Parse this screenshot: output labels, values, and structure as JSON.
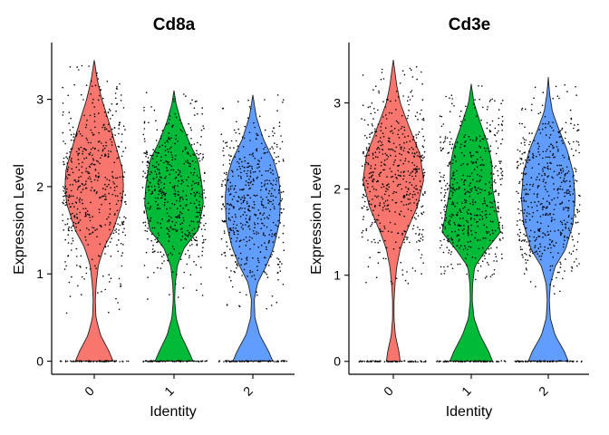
{
  "chart_data": [
    {
      "type": "violin",
      "title": "Cd8a",
      "xlabel": "Identity",
      "ylabel": "Expression Level",
      "ylim": [
        -0.15,
        3.65
      ],
      "yticks": [
        0,
        1,
        2,
        3
      ],
      "categories": [
        "0",
        "1",
        "2"
      ],
      "colors": [
        "#F8766D",
        "#00BA38",
        "#619CFF"
      ],
      "grid": false,
      "legend": "none",
      "series": [
        {
          "category": "0",
          "max": 3.45,
          "zero_width": 0.55,
          "min_nonzero": 0.55,
          "profile": [
            [
              0,
              0.55
            ],
            [
              0.12,
              0.42
            ],
            [
              0.3,
              0.18
            ],
            [
              0.5,
              0.05
            ],
            [
              0.7,
              0.03
            ],
            [
              0.9,
              0.06
            ],
            [
              1.1,
              0.12
            ],
            [
              1.3,
              0.28
            ],
            [
              1.5,
              0.55
            ],
            [
              1.8,
              0.8
            ],
            [
              2.0,
              0.85
            ],
            [
              2.2,
              0.82
            ],
            [
              2.5,
              0.6
            ],
            [
              2.8,
              0.38
            ],
            [
              3.0,
              0.22
            ],
            [
              3.2,
              0.1
            ],
            [
              3.45,
              0
            ]
          ]
        },
        {
          "category": "1",
          "max": 3.1,
          "zero_width": 0.55,
          "min_nonzero": 0.7,
          "profile": [
            [
              0,
              0.55
            ],
            [
              0.12,
              0.42
            ],
            [
              0.3,
              0.2
            ],
            [
              0.5,
              0.06
            ],
            [
              0.7,
              0.02
            ],
            [
              0.9,
              0.04
            ],
            [
              1.1,
              0.1
            ],
            [
              1.3,
              0.3
            ],
            [
              1.5,
              0.7
            ],
            [
              1.8,
              0.85
            ],
            [
              2.0,
              0.82
            ],
            [
              2.3,
              0.7
            ],
            [
              2.5,
              0.45
            ],
            [
              2.75,
              0.2
            ],
            [
              2.95,
              0.06
            ],
            [
              3.1,
              0
            ]
          ]
        },
        {
          "category": "2",
          "max": 3.05,
          "zero_width": 0.58,
          "min_nonzero": 0.6,
          "profile": [
            [
              0,
              0.58
            ],
            [
              0.12,
              0.45
            ],
            [
              0.3,
              0.2
            ],
            [
              0.5,
              0.06
            ],
            [
              0.7,
              0.04
            ],
            [
              0.9,
              0.14
            ],
            [
              1.1,
              0.4
            ],
            [
              1.3,
              0.6
            ],
            [
              1.6,
              0.78
            ],
            [
              1.9,
              0.8
            ],
            [
              2.1,
              0.75
            ],
            [
              2.3,
              0.6
            ],
            [
              2.55,
              0.3
            ],
            [
              2.8,
              0.1
            ],
            [
              3.05,
              0
            ]
          ]
        }
      ]
    },
    {
      "type": "violin",
      "title": "Cd3e",
      "xlabel": "Identity",
      "ylabel": "Expression Level",
      "ylim": [
        -0.15,
        3.7
      ],
      "yticks": [
        0,
        1,
        2,
        3
      ],
      "categories": [
        "0",
        "1",
        "2"
      ],
      "colors": [
        "#F8766D",
        "#00BA38",
        "#619CFF"
      ],
      "grid": false,
      "legend": "none",
      "series": [
        {
          "category": "0",
          "max": 3.5,
          "zero_width": 0.2,
          "min_nonzero": 0.9,
          "profile": [
            [
              0,
              0.2
            ],
            [
              0.12,
              0.16
            ],
            [
              0.3,
              0.06
            ],
            [
              0.5,
              0.02
            ],
            [
              0.7,
              0.02
            ],
            [
              0.9,
              0.05
            ],
            [
              1.1,
              0.1
            ],
            [
              1.3,
              0.2
            ],
            [
              1.5,
              0.38
            ],
            [
              1.8,
              0.7
            ],
            [
              2.1,
              0.88
            ],
            [
              2.4,
              0.78
            ],
            [
              2.7,
              0.48
            ],
            [
              3.0,
              0.2
            ],
            [
              3.2,
              0.1
            ],
            [
              3.5,
              0
            ]
          ]
        },
        {
          "category": "1",
          "max": 3.22,
          "zero_width": 0.62,
          "min_nonzero": 0.95,
          "profile": [
            [
              0,
              0.62
            ],
            [
              0.12,
              0.5
            ],
            [
              0.3,
              0.26
            ],
            [
              0.5,
              0.08
            ],
            [
              0.7,
              0.03
            ],
            [
              0.9,
              0.04
            ],
            [
              1.1,
              0.1
            ],
            [
              1.3,
              0.45
            ],
            [
              1.5,
              0.85
            ],
            [
              1.7,
              0.75
            ],
            [
              2.0,
              0.62
            ],
            [
              2.3,
              0.6
            ],
            [
              2.5,
              0.5
            ],
            [
              2.75,
              0.28
            ],
            [
              3.0,
              0.08
            ],
            [
              3.22,
              0
            ]
          ]
        },
        {
          "category": "2",
          "max": 3.3,
          "zero_width": 0.58,
          "min_nonzero": 0.75,
          "profile": [
            [
              0,
              0.58
            ],
            [
              0.12,
              0.46
            ],
            [
              0.3,
              0.2
            ],
            [
              0.5,
              0.06
            ],
            [
              0.7,
              0.03
            ],
            [
              0.9,
              0.06
            ],
            [
              1.1,
              0.2
            ],
            [
              1.3,
              0.5
            ],
            [
              1.6,
              0.72
            ],
            [
              1.9,
              0.78
            ],
            [
              2.2,
              0.72
            ],
            [
              2.45,
              0.55
            ],
            [
              2.7,
              0.3
            ],
            [
              2.9,
              0.12
            ],
            [
              3.1,
              0.04
            ],
            [
              3.3,
              0
            ]
          ]
        }
      ]
    }
  ]
}
